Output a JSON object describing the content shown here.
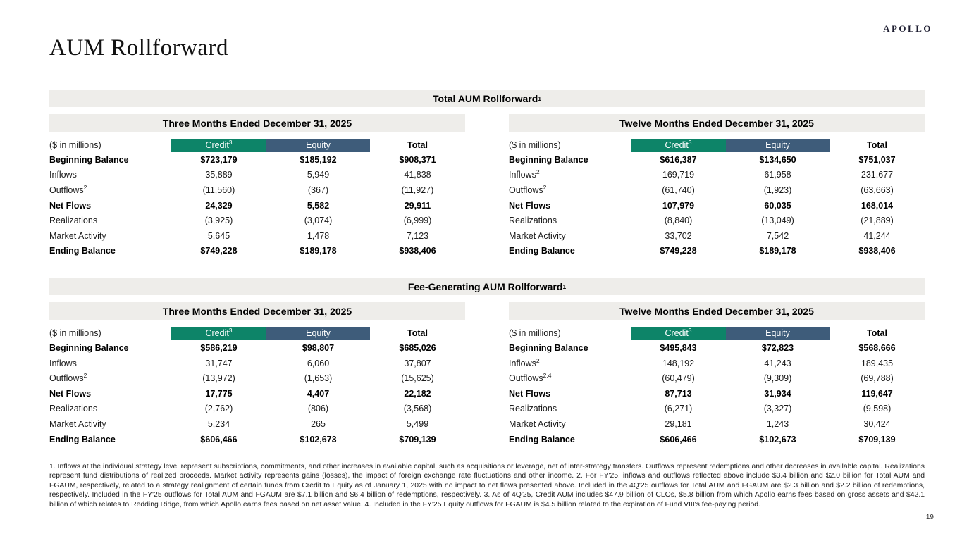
{
  "page": {
    "logo": "APOLLO",
    "title": "AUM Rollforward",
    "page_number": "19"
  },
  "colors": {
    "band_bg": "#EEEDEA",
    "credit_header_bg": "#0D8468",
    "equity_header_bg": "#3E5C7A"
  },
  "sections": [
    {
      "title": "Total AUM Rollforward",
      "title_sup": "1",
      "tables": [
        {
          "period": "Three Months Ended December 31, 2025",
          "unit_label": "($ in millions)",
          "columns": {
            "credit": "Credit",
            "credit_sup": "3",
            "equity": "Equity",
            "total": "Total"
          },
          "rows": [
            {
              "label": "Beginning Balance",
              "sup": "",
              "bold": true,
              "credit": "$723,179",
              "equity": "$185,192",
              "total": "$908,371"
            },
            {
              "label": "Inflows",
              "sup": "",
              "bold": false,
              "credit": "35,889",
              "equity": "5,949",
              "total": "41,838"
            },
            {
              "label": "Outflows",
              "sup": "2",
              "bold": false,
              "credit": "(11,560)",
              "equity": "(367)",
              "total": "(11,927)"
            },
            {
              "label": "Net Flows",
              "sup": "",
              "bold": true,
              "credit": "24,329",
              "equity": "5,582",
              "total": "29,911"
            },
            {
              "label": "Realizations",
              "sup": "",
              "bold": false,
              "credit": "(3,925)",
              "equity": "(3,074)",
              "total": "(6,999)"
            },
            {
              "label": "Market Activity",
              "sup": "",
              "bold": false,
              "credit": "5,645",
              "equity": "1,478",
              "total": "7,123"
            },
            {
              "label": "Ending Balance",
              "sup": "",
              "bold": true,
              "credit": "$749,228",
              "equity": "$189,178",
              "total": "$938,406"
            }
          ]
        },
        {
          "period": "Twelve Months Ended December 31, 2025",
          "unit_label": "($ in millions)",
          "columns": {
            "credit": "Credit",
            "credit_sup": "3",
            "equity": "Equity",
            "total": "Total"
          },
          "rows": [
            {
              "label": "Beginning Balance",
              "sup": "",
              "bold": true,
              "credit": "$616,387",
              "equity": "$134,650",
              "total": "$751,037"
            },
            {
              "label": "Inflows",
              "sup": "2",
              "bold": false,
              "credit": "169,719",
              "equity": "61,958",
              "total": "231,677"
            },
            {
              "label": "Outflows",
              "sup": "2",
              "bold": false,
              "credit": "(61,740)",
              "equity": "(1,923)",
              "total": "(63,663)"
            },
            {
              "label": "Net Flows",
              "sup": "",
              "bold": true,
              "credit": "107,979",
              "equity": "60,035",
              "total": "168,014"
            },
            {
              "label": "Realizations",
              "sup": "",
              "bold": false,
              "credit": "(8,840)",
              "equity": "(13,049)",
              "total": "(21,889)"
            },
            {
              "label": "Market Activity",
              "sup": "",
              "bold": false,
              "credit": "33,702",
              "equity": "7,542",
              "total": "41,244"
            },
            {
              "label": "Ending Balance",
              "sup": "",
              "bold": true,
              "credit": "$749,228",
              "equity": "$189,178",
              "total": "$938,406"
            }
          ]
        }
      ]
    },
    {
      "title": "Fee-Generating AUM Rollforward",
      "title_sup": "1",
      "tables": [
        {
          "period": "Three Months Ended December 31, 2025",
          "unit_label": "($ in millions)",
          "columns": {
            "credit": "Credit",
            "credit_sup": "3",
            "equity": "Equity",
            "total": "Total"
          },
          "rows": [
            {
              "label": "Beginning Balance",
              "sup": "",
              "bold": true,
              "credit": "$586,219",
              "equity": "$98,807",
              "total": "$685,026"
            },
            {
              "label": "Inflows",
              "sup": "",
              "bold": false,
              "credit": "31,747",
              "equity": "6,060",
              "total": "37,807"
            },
            {
              "label": "Outflows",
              "sup": "2",
              "bold": false,
              "credit": "(13,972)",
              "equity": "(1,653)",
              "total": "(15,625)"
            },
            {
              "label": "Net Flows",
              "sup": "",
              "bold": true,
              "credit": "17,775",
              "equity": "4,407",
              "total": "22,182"
            },
            {
              "label": "Realizations",
              "sup": "",
              "bold": false,
              "credit": "(2,762)",
              "equity": "(806)",
              "total": "(3,568)"
            },
            {
              "label": "Market Activity",
              "sup": "",
              "bold": false,
              "credit": "5,234",
              "equity": "265",
              "total": "5,499"
            },
            {
              "label": "Ending Balance",
              "sup": "",
              "bold": true,
              "credit": "$606,466",
              "equity": "$102,673",
              "total": "$709,139"
            }
          ]
        },
        {
          "period": "Twelve Months Ended December 31, 2025",
          "unit_label": "($ in millions)",
          "columns": {
            "credit": "Credit",
            "credit_sup": "3",
            "equity": "Equity",
            "total": "Total"
          },
          "rows": [
            {
              "label": "Beginning Balance",
              "sup": "",
              "bold": true,
              "credit": "$495,843",
              "equity": "$72,823",
              "total": "$568,666"
            },
            {
              "label": "Inflows",
              "sup": "2",
              "bold": false,
              "credit": "148,192",
              "equity": "41,243",
              "total": "189,435"
            },
            {
              "label": "Outflows",
              "sup": "2,4",
              "bold": false,
              "credit": "(60,479)",
              "equity": "(9,309)",
              "total": "(69,788)"
            },
            {
              "label": "Net Flows",
              "sup": "",
              "bold": true,
              "credit": "87,713",
              "equity": "31,934",
              "total": "119,647"
            },
            {
              "label": "Realizations",
              "sup": "",
              "bold": false,
              "credit": "(6,271)",
              "equity": "(3,327)",
              "total": "(9,598)"
            },
            {
              "label": "Market Activity",
              "sup": "",
              "bold": false,
              "credit": "29,181",
              "equity": "1,243",
              "total": "30,424"
            },
            {
              "label": "Ending Balance",
              "sup": "",
              "bold": true,
              "credit": "$606,466",
              "equity": "$102,673",
              "total": "$709,139"
            }
          ]
        }
      ]
    }
  ],
  "footnotes": "1. Inflows at the individual strategy level represent subscriptions, commitments, and other increases in available capital, such as acquisitions or leverage, net of inter-strategy transfers. Outflows represent redemptions and other decreases in available capital. Realizations represent fund distributions of realized proceeds. Market activity represents gains (losses), the impact of foreign exchange rate fluctuations and other income. 2. For FY'25, inflows and outflows reflected above include $3.4 billion and $2.0 billion for Total AUM and FGAUM, respectively, related to a strategy realignment of certain funds from Credit to Equity as of January 1, 2025 with no impact to net flows presented above. Included in the 4Q'25 outflows for Total AUM and FGAUM are $2.3 billion and $2.2 billion of redemptions, respectively. Included in the FY'25 outflows for Total AUM and FGAUM are $7.1 billion and $6.4 billion of redemptions, respectively. 3. As of 4Q'25, Credit AUM includes $47.9 billion of CLOs, $5.8 billion from which Apollo earns fees based on gross assets and $42.1 billion of which relates to Redding Ridge, from which Apollo earns fees based on net asset value. 4. Included in the FY'25 Equity outflows for FGAUM is $4.5 billion related to the expiration of Fund VIII's fee-paying period."
}
